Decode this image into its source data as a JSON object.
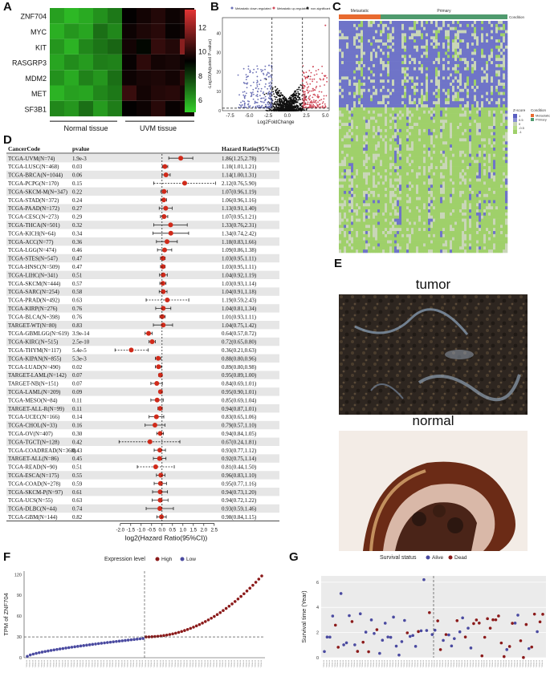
{
  "panel_labels": {
    "A": "A",
    "B": "B",
    "C": "C",
    "D": "D",
    "E": "E",
    "F": "F",
    "G": "G"
  },
  "colors": {
    "heat_low": "#33d12a",
    "heat_mid": "#000000",
    "heat_high": "#e23434",
    "metastatic": "#e86a2f",
    "primary": "#4f9a6e",
    "high": "#8b1a1a",
    "low": "#4a4aa0",
    "forest_point": "#d02a1a",
    "volcano_down": "#6a6fb5",
    "volcano_up": "#d04a5a"
  },
  "chart_data": [
    {
      "panel": "A",
      "type": "heatmap",
      "row_labels": [
        "ZNF704",
        "MYC",
        "KIT",
        "RASGRP3",
        "MDM2",
        "MET",
        "SF3B1"
      ],
      "group_labels": [
        "Normal tissue",
        "UVM tissue"
      ],
      "colorbar_ticks": [
        "12",
        "10",
        "8",
        "6"
      ],
      "clim": [
        5,
        13.5
      ],
      "values": [
        [
          6.0,
          5.5,
          5.8,
          6.3,
          6.8,
          9.3,
          9.6,
          9.9,
          9.5,
          9.8
        ],
        [
          5.7,
          6.2,
          5.9,
          7.0,
          6.5,
          9.5,
          9.8,
          10.0,
          9.4,
          9.6
        ],
        [
          6.2,
          5.6,
          6.5,
          6.9,
          7.2,
          9.6,
          9.1,
          10.2,
          9.9,
          11.8
        ],
        [
          5.9,
          6.4,
          6.1,
          6.7,
          6.6,
          9.4,
          10.1,
          9.6,
          9.7,
          9.5
        ],
        [
          6.3,
          5.8,
          6.6,
          6.2,
          7.0,
          9.5,
          9.7,
          9.8,
          9.6,
          10.1
        ],
        [
          5.6,
          6.0,
          5.9,
          6.5,
          6.8,
          10.3,
          9.6,
          9.9,
          10.0,
          9.7
        ],
        [
          6.5,
          6.2,
          7.0,
          6.1,
          6.7,
          9.3,
          9.5,
          10.0,
          9.4,
          9.6
        ]
      ]
    },
    {
      "panel": "B",
      "type": "scatter",
      "legend": [
        "Metastatic down-regulated",
        "Metastatic up-regulated",
        "non-significant"
      ],
      "xlabel": "Log2FoldChange",
      "ylabel": "-Log10(Adjusted P-value)",
      "xticks": [
        "-7.5",
        "-5.0",
        "-2.5",
        "0.0",
        "2.5",
        "5.0"
      ],
      "yticks": [
        "0",
        "10",
        "20",
        "30",
        "40"
      ],
      "xlim": [
        -8.5,
        5.5
      ],
      "ylim": [
        0,
        48
      ],
      "thresholds_x": [
        -2,
        2
      ],
      "threshold_y": 1.3
    },
    {
      "panel": "C",
      "type": "heatmap",
      "group_labels": [
        "Metastatic",
        "Primary"
      ],
      "condition_label": "Condition",
      "legend_title": "Z-score",
      "legend_ticks": [
        "1",
        "0.5",
        "0",
        "-0.5",
        "-1"
      ],
      "condition_legend_title": "Condition",
      "condition_legend_items": [
        "Metastatic",
        "Primary"
      ]
    },
    {
      "panel": "D",
      "type": "scatter",
      "columns": [
        "CancerCode",
        "pvalue",
        "Hazard Ratio(95%CI)"
      ],
      "xlabel": "log2(Hazard Ratio(95%CI))",
      "xticks": [
        "-2.0",
        "-1.5",
        "-1.0",
        "-0.5",
        "0.0",
        "0.5",
        "1.0",
        "1.5",
        "2.0",
        "2.5"
      ],
      "xlim": [
        -2.3,
        2.7
      ],
      "rows": [
        {
          "code": "TCGA-UVM(N=74)",
          "p": "1.9e-3",
          "hr": "1.86(1.25,2.78)",
          "l": 0.896,
          "lo": 0.322,
          "hi": 1.475,
          "dash": false
        },
        {
          "code": "TCGA-LUSC(N=468)",
          "p": "0.03",
          "hr": "1.10(1.01,1.21)",
          "l": 0.138,
          "lo": 0.014,
          "hi": 0.275,
          "dash": false
        },
        {
          "code": "TCGA-BRCA(N=1044)",
          "p": "0.06",
          "hr": "1.14(1.00,1.31)",
          "l": 0.189,
          "lo": 0.0,
          "hi": 0.39,
          "dash": false
        },
        {
          "code": "TCGA-PCPG(N=170)",
          "p": "0.15",
          "hr": "2.12(0.76,5.90)",
          "l": 1.084,
          "lo": -0.396,
          "hi": 2.561,
          "dash": true
        },
        {
          "code": "TCGA-SKCM-M(N=347)",
          "p": "0.22",
          "hr": "1.07(0.96,1.19)",
          "l": 0.098,
          "lo": -0.059,
          "hi": 0.251,
          "dash": false
        },
        {
          "code": "TCGA-STAD(N=372)",
          "p": "0.24",
          "hr": "1.06(0.96,1.16)",
          "l": 0.084,
          "lo": -0.059,
          "hi": 0.214,
          "dash": false
        },
        {
          "code": "TCGA-PAAD(N=172)",
          "p": "0.27",
          "hr": "1.13(0.91,1.40)",
          "l": 0.176,
          "lo": -0.136,
          "hi": 0.485,
          "dash": false
        },
        {
          "code": "TCGA-CESC(N=273)",
          "p": "0.29",
          "hr": "1.07(0.95,1.21)",
          "l": 0.098,
          "lo": -0.074,
          "hi": 0.275,
          "dash": false
        },
        {
          "code": "TCGA-THCA(N=501)",
          "p": "0.32",
          "hr": "1.33(0.76,2.31)",
          "l": 0.411,
          "lo": -0.396,
          "hi": 1.208,
          "dash": false
        },
        {
          "code": "TCGA-KICH(N=64)",
          "p": "0.34",
          "hr": "1.34(0.74,2.42)",
          "l": 0.422,
          "lo": -0.434,
          "hi": 1.275,
          "dash": false
        },
        {
          "code": "TCGA-ACC(N=77)",
          "p": "0.36",
          "hr": "1.18(0.83,1.66)",
          "l": 0.239,
          "lo": -0.269,
          "hi": 0.731,
          "dash": false
        },
        {
          "code": "TCGA-LGG(N=474)",
          "p": "0.46",
          "hr": "1.09(0.86,1.38)",
          "l": 0.124,
          "lo": -0.218,
          "hi": 0.465,
          "dash": false
        },
        {
          "code": "TCGA-STES(N=547)",
          "p": "0.47",
          "hr": "1.03(0.95,1.11)",
          "l": 0.043,
          "lo": -0.074,
          "hi": 0.151,
          "dash": false
        },
        {
          "code": "TCGA-HNSC(N=509)",
          "p": "0.47",
          "hr": "1.03(0.95,1.11)",
          "l": 0.043,
          "lo": -0.074,
          "hi": 0.151,
          "dash": false
        },
        {
          "code": "TCGA-LIHC(N=341)",
          "p": "0.51",
          "hr": "1.04(0.92,1.19)",
          "l": 0.057,
          "lo": -0.12,
          "hi": 0.251,
          "dash": false
        },
        {
          "code": "TCGA-SKCM(N=444)",
          "p": "0.57",
          "hr": "1.03(0.93,1.14)",
          "l": 0.043,
          "lo": -0.105,
          "hi": 0.189,
          "dash": false
        },
        {
          "code": "TCGA-SARC(N=254)",
          "p": "0.58",
          "hr": "1.04(0.91,1.18)",
          "l": 0.057,
          "lo": -0.136,
          "hi": 0.239,
          "dash": false
        },
        {
          "code": "TCGA-PRAD(N=492)",
          "p": "0.63",
          "hr": "1.19(0.59,2.43)",
          "l": 0.251,
          "lo": -0.761,
          "hi": 1.281,
          "dash": true
        },
        {
          "code": "TCGA-KIRP(N=276)",
          "p": "0.76",
          "hr": "1.04(0.81,1.34)",
          "l": 0.057,
          "lo": -0.304,
          "hi": 0.422,
          "dash": false
        },
        {
          "code": "TCGA-BLCA(N=398)",
          "p": "0.76",
          "hr": "1.01(0.93,1.11)",
          "l": 0.014,
          "lo": -0.105,
          "hi": 0.151,
          "dash": false
        },
        {
          "code": "TARGET-WT(N=80)",
          "p": "0.83",
          "hr": "1.04(0.75,1.42)",
          "l": 0.057,
          "lo": -0.415,
          "hi": 0.506,
          "dash": false
        },
        {
          "code": "TCGA-GBMLGG(N=619)",
          "p": "3.9e-14",
          "hr": "0.64(0.57,0.72)",
          "l": -0.644,
          "lo": -0.811,
          "hi": -0.474,
          "dash": false
        },
        {
          "code": "TCGA-KIRC(N=515)",
          "p": "2.5e-10",
          "hr": "0.72(0.65,0.80)",
          "l": -0.474,
          "lo": -0.621,
          "hi": -0.322,
          "dash": false
        },
        {
          "code": "TCGA-THYM(N=117)",
          "p": "5.4e-5",
          "hr": "0.36(0.21,0.63)",
          "l": -1.474,
          "lo": -2.252,
          "hi": -0.667,
          "dash": true
        },
        {
          "code": "TCGA-KIPAN(N=855)",
          "p": "5.3e-3",
          "hr": "0.88(0.80,0.96)",
          "l": -0.184,
          "lo": -0.322,
          "hi": -0.059,
          "dash": false
        },
        {
          "code": "TCGA-LUAD(N=490)",
          "p": "0.02",
          "hr": "0.89(0.80,0.98)",
          "l": -0.168,
          "lo": -0.322,
          "hi": -0.029,
          "dash": false
        },
        {
          "code": "TARGET-LAML(N=142)",
          "p": "0.07",
          "hr": "0.95(0.89,1.00)",
          "l": -0.074,
          "lo": -0.168,
          "hi": 0.0,
          "dash": false
        },
        {
          "code": "TARGET-NB(N=151)",
          "p": "0.07",
          "hr": "0.84(0.69,1.01)",
          "l": -0.252,
          "lo": -0.535,
          "hi": 0.014,
          "dash": false
        },
        {
          "code": "TCGA-LAML(N=209)",
          "p": "0.09",
          "hr": "0.95(0.90,1.01)",
          "l": -0.074,
          "lo": -0.152,
          "hi": 0.014,
          "dash": false
        },
        {
          "code": "TCGA-MESO(N=84)",
          "p": "0.11",
          "hr": "0.85(0.69,1.04)",
          "l": -0.234,
          "lo": -0.535,
          "hi": 0.057,
          "dash": false
        },
        {
          "code": "TARGET-ALL-R(N=99)",
          "p": "0.11",
          "hr": "0.94(0.87,1.01)",
          "l": -0.089,
          "lo": -0.201,
          "hi": 0.014,
          "dash": false
        },
        {
          "code": "TCGA-UCEC(N=166)",
          "p": "0.14",
          "hr": "0.83(0.65,1.06)",
          "l": -0.269,
          "lo": -0.621,
          "hi": 0.084,
          "dash": false
        },
        {
          "code": "TCGA-CHOL(N=33)",
          "p": "0.16",
          "hr": "0.79(0.57,1.10)",
          "l": -0.34,
          "lo": -0.811,
          "hi": 0.138,
          "dash": false
        },
        {
          "code": "TCGA-OV(N=407)",
          "p": "0.30",
          "hr": "0.94(0.84,1.05)",
          "l": -0.089,
          "lo": -0.252,
          "hi": 0.07,
          "dash": false
        },
        {
          "code": "TCGA-TGCT(N=128)",
          "p": "0.42",
          "hr": "0.67(0.24,1.81)",
          "l": -0.578,
          "lo": -2.059,
          "hi": 0.856,
          "dash": true
        },
        {
          "code": "TCGA-COADREAD(N=368)",
          "p": "0.43",
          "hr": "0.93(0.77,1.12)",
          "l": -0.105,
          "lo": -0.377,
          "hi": 0.164,
          "dash": false
        },
        {
          "code": "TARGET-ALL(N=86)",
          "p": "0.45",
          "hr": "0.92(0.75,1.14)",
          "l": -0.12,
          "lo": -0.415,
          "hi": 0.189,
          "dash": false
        },
        {
          "code": "TCGA-READ(N=90)",
          "p": "0.51",
          "hr": "0.81(0.44,1.50)",
          "l": -0.304,
          "lo": -1.184,
          "hi": 0.585,
          "dash": true
        },
        {
          "code": "TCGA-ESCA(N=175)",
          "p": "0.55",
          "hr": "0.96(0.83,1.10)",
          "l": -0.059,
          "lo": -0.269,
          "hi": 0.138,
          "dash": false
        },
        {
          "code": "TCGA-COAD(N=278)",
          "p": "0.59",
          "hr": "0.95(0.77,1.16)",
          "l": -0.074,
          "lo": -0.377,
          "hi": 0.214,
          "dash": false
        },
        {
          "code": "TCGA-SKCM-P(N=97)",
          "p": "0.61",
          "hr": "0.94(0.73,1.20)",
          "l": -0.089,
          "lo": -0.454,
          "hi": 0.263,
          "dash": false
        },
        {
          "code": "TCGA-UCS(N=55)",
          "p": "0.63",
          "hr": "0.94(0.72,1.22)",
          "l": -0.089,
          "lo": -0.474,
          "hi": 0.287,
          "dash": false
        },
        {
          "code": "TCGA-DLBC(N=44)",
          "p": "0.74",
          "hr": "0.93(0.59,1.46)",
          "l": -0.105,
          "lo": -0.761,
          "hi": 0.546,
          "dash": false
        },
        {
          "code": "TCGA-GBM(N=144)",
          "p": "0.82",
          "hr": "0.98(0.84,1.15)",
          "l": -0.029,
          "lo": -0.252,
          "hi": 0.202,
          "dash": false
        }
      ]
    },
    {
      "panel": "F",
      "type": "scatter",
      "legend_title": "Expression level",
      "legend_items": [
        "High",
        "Low"
      ],
      "ylabel": "TPM of ZNF704",
      "yticks": [
        "0",
        "30",
        "60",
        "90",
        "120"
      ],
      "ylim": [
        0,
        125
      ],
      "hline": 30,
      "n": 80
    },
    {
      "panel": "G",
      "type": "scatter",
      "legend_title": "Survival status",
      "legend_items": [
        "Alive",
        "Dead"
      ],
      "ylabel": "Survival time (Year)",
      "yticks": [
        "0",
        "2",
        "4",
        "6"
      ],
      "ylim": [
        0,
        6.5
      ],
      "n": 80
    }
  ],
  "panel_e": {
    "tumor_label": "tumor",
    "normal_label": "normal"
  }
}
